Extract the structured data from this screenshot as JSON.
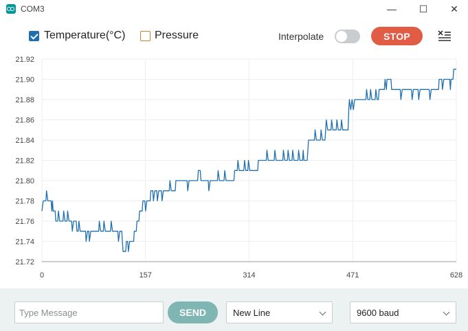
{
  "window": {
    "title": "COM3",
    "minimize_glyph": "—",
    "maximize_glyph": "☐",
    "close_glyph": "✕"
  },
  "toolbar": {
    "series1_label": "Temperature(°C)",
    "series1_checked": true,
    "series1_color": "#1f6fb0",
    "series2_label": "Pressure",
    "series2_checked": false,
    "series2_color": "#c8822f",
    "interpolate_label": "Interpolate",
    "interpolate_on": false,
    "stop_label": "STOP",
    "clear_icon": "clear-output-icon"
  },
  "chart_data": {
    "type": "line",
    "title": "",
    "xlabel": "",
    "ylabel": "",
    "xlim": [
      0,
      628
    ],
    "ylim": [
      21.72,
      21.92
    ],
    "xticks": [
      0,
      157,
      314,
      471,
      628
    ],
    "yticks": [
      21.72,
      21.74,
      21.76,
      21.78,
      21.8,
      21.82,
      21.84,
      21.86,
      21.88,
      21.9,
      21.92
    ],
    "grid": true,
    "series": [
      {
        "color": "#1f6fb0",
        "points": [
          [
            0,
            21.77
          ],
          [
            2,
            21.78
          ],
          [
            6,
            21.78
          ],
          [
            7,
            21.79
          ],
          [
            9,
            21.78
          ],
          [
            14,
            21.78
          ],
          [
            15,
            21.77
          ],
          [
            16,
            21.78
          ],
          [
            17,
            21.77
          ],
          [
            20,
            21.77
          ],
          [
            21,
            21.76
          ],
          [
            24,
            21.76
          ],
          [
            25,
            21.77
          ],
          [
            27,
            21.76
          ],
          [
            32,
            21.76
          ],
          [
            33,
            21.77
          ],
          [
            35,
            21.76
          ],
          [
            38,
            21.76
          ],
          [
            39,
            21.77
          ],
          [
            41,
            21.76
          ],
          [
            45,
            21.76
          ],
          [
            46,
            21.75
          ],
          [
            48,
            21.76
          ],
          [
            52,
            21.76
          ],
          [
            53,
            21.75
          ],
          [
            55,
            21.75
          ],
          [
            56,
            21.76
          ],
          [
            58,
            21.75
          ],
          [
            66,
            21.75
          ],
          [
            67,
            21.74
          ],
          [
            69,
            21.75
          ],
          [
            71,
            21.75
          ],
          [
            72,
            21.74
          ],
          [
            74,
            21.75
          ],
          [
            86,
            21.75
          ],
          [
            87,
            21.76
          ],
          [
            89,
            21.75
          ],
          [
            93,
            21.75
          ],
          [
            94,
            21.76
          ],
          [
            96,
            21.75
          ],
          [
            104,
            21.75
          ],
          [
            105,
            21.76
          ],
          [
            107,
            21.75
          ],
          [
            115,
            21.75
          ],
          [
            116,
            21.74
          ],
          [
            118,
            21.75
          ],
          [
            121,
            21.75
          ],
          [
            122,
            21.74
          ],
          [
            123,
            21.73
          ],
          [
            127,
            21.73
          ],
          [
            128,
            21.74
          ],
          [
            130,
            21.74
          ],
          [
            131,
            21.73
          ],
          [
            133,
            21.74
          ],
          [
            139,
            21.74
          ],
          [
            140,
            21.75
          ],
          [
            143,
            21.75
          ],
          [
            144,
            21.76
          ],
          [
            147,
            21.76
          ],
          [
            148,
            21.77
          ],
          [
            152,
            21.77
          ],
          [
            153,
            21.78
          ],
          [
            156,
            21.78
          ],
          [
            157,
            21.77
          ],
          [
            159,
            21.78
          ],
          [
            164,
            21.78
          ],
          [
            165,
            21.79
          ],
          [
            168,
            21.79
          ],
          [
            169,
            21.78
          ],
          [
            171,
            21.79
          ],
          [
            174,
            21.79
          ],
          [
            175,
            21.78
          ],
          [
            177,
            21.79
          ],
          [
            181,
            21.79
          ],
          [
            182,
            21.78
          ],
          [
            184,
            21.79
          ],
          [
            193,
            21.79
          ],
          [
            194,
            21.8
          ],
          [
            196,
            21.79
          ],
          [
            202,
            21.79
          ],
          [
            203,
            21.8
          ],
          [
            220,
            21.8
          ],
          [
            221,
            21.79
          ],
          [
            223,
            21.8
          ],
          [
            236,
            21.8
          ],
          [
            237,
            21.81
          ],
          [
            240,
            21.81
          ],
          [
            241,
            21.8
          ],
          [
            252,
            21.8
          ],
          [
            253,
            21.79
          ],
          [
            255,
            21.8
          ],
          [
            266,
            21.8
          ],
          [
            267,
            21.81
          ],
          [
            269,
            21.8
          ],
          [
            276,
            21.8
          ],
          [
            277,
            21.81
          ],
          [
            279,
            21.8
          ],
          [
            291,
            21.8
          ],
          [
            292,
            21.81
          ],
          [
            296,
            21.81
          ],
          [
            297,
            21.82
          ],
          [
            299,
            21.81
          ],
          [
            306,
            21.81
          ],
          [
            307,
            21.82
          ],
          [
            309,
            21.81
          ],
          [
            312,
            21.81
          ],
          [
            313,
            21.82
          ],
          [
            315,
            21.81
          ],
          [
            327,
            21.81
          ],
          [
            328,
            21.82
          ],
          [
            340,
            21.82
          ],
          [
            341,
            21.83
          ],
          [
            343,
            21.82
          ],
          [
            352,
            21.82
          ],
          [
            353,
            21.83
          ],
          [
            355,
            21.82
          ],
          [
            365,
            21.82
          ],
          [
            366,
            21.83
          ],
          [
            368,
            21.82
          ],
          [
            372,
            21.82
          ],
          [
            373,
            21.83
          ],
          [
            375,
            21.82
          ],
          [
            379,
            21.82
          ],
          [
            380,
            21.83
          ],
          [
            382,
            21.82
          ],
          [
            388,
            21.82
          ],
          [
            389,
            21.83
          ],
          [
            391,
            21.82
          ],
          [
            395,
            21.82
          ],
          [
            396,
            21.83
          ],
          [
            397,
            21.82
          ],
          [
            402,
            21.82
          ],
          [
            403,
            21.83
          ],
          [
            404,
            21.84
          ],
          [
            413,
            21.84
          ],
          [
            414,
            21.85
          ],
          [
            416,
            21.84
          ],
          [
            422,
            21.84
          ],
          [
            423,
            21.85
          ],
          [
            425,
            21.84
          ],
          [
            429,
            21.84
          ],
          [
            430,
            21.85
          ],
          [
            431,
            21.86
          ],
          [
            433,
            21.85
          ],
          [
            438,
            21.85
          ],
          [
            439,
            21.86
          ],
          [
            441,
            21.85
          ],
          [
            446,
            21.85
          ],
          [
            447,
            21.86
          ],
          [
            449,
            21.85
          ],
          [
            453,
            21.85
          ],
          [
            454,
            21.86
          ],
          [
            456,
            21.85
          ],
          [
            464,
            21.85
          ],
          [
            465,
            21.87
          ],
          [
            466,
            21.88
          ],
          [
            468,
            21.87
          ],
          [
            470,
            21.88
          ],
          [
            472,
            21.87
          ],
          [
            474,
            21.88
          ],
          [
            491,
            21.88
          ],
          [
            492,
            21.89
          ],
          [
            494,
            21.88
          ],
          [
            497,
            21.88
          ],
          [
            498,
            21.89
          ],
          [
            500,
            21.88
          ],
          [
            505,
            21.88
          ],
          [
            506,
            21.89
          ],
          [
            508,
            21.88
          ],
          [
            510,
            21.88
          ],
          [
            511,
            21.89
          ],
          [
            519,
            21.89
          ],
          [
            520,
            21.9
          ],
          [
            522,
            21.89
          ],
          [
            523,
            21.9
          ],
          [
            529,
            21.9
          ],
          [
            530,
            21.89
          ],
          [
            543,
            21.89
          ],
          [
            544,
            21.88
          ],
          [
            546,
            21.89
          ],
          [
            560,
            21.89
          ],
          [
            561,
            21.88
          ],
          [
            563,
            21.89
          ],
          [
            570,
            21.89
          ],
          [
            571,
            21.88
          ],
          [
            573,
            21.89
          ],
          [
            587,
            21.89
          ],
          [
            588,
            21.88
          ],
          [
            590,
            21.89
          ],
          [
            601,
            21.89
          ],
          [
            602,
            21.9
          ],
          [
            606,
            21.9
          ],
          [
            607,
            21.89
          ],
          [
            609,
            21.9
          ],
          [
            618,
            21.9
          ],
          [
            619,
            21.89
          ],
          [
            620,
            21.9
          ],
          [
            623,
            21.9
          ],
          [
            624,
            21.91
          ],
          [
            628,
            21.91
          ]
        ]
      }
    ]
  },
  "bottom_bar": {
    "message_placeholder": "Type Message",
    "message_value": "",
    "send_label": "SEND",
    "line_ending_selected": "New Line",
    "baud_selected": "9600 baud"
  }
}
